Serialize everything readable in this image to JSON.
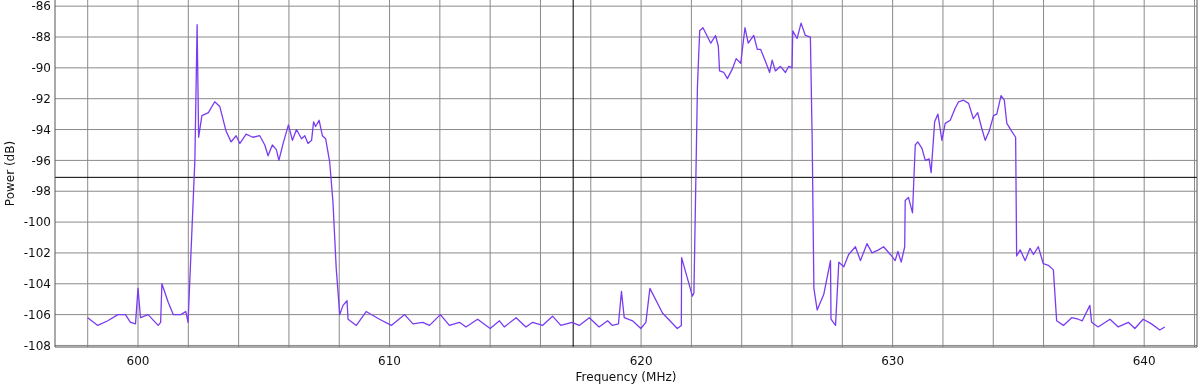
{
  "chart_data": {
    "type": "line",
    "xlabel": "Frequency (MHz)",
    "ylabel": "Power (dB)",
    "xlim": [
      596.7,
      642.1
    ],
    "ylim": [
      -108.1,
      -85.6
    ],
    "xticks": [
      {
        "value": 598,
        "label": null
      },
      600,
      {
        "value": 602,
        "label": null
      },
      {
        "value": 604,
        "label": null
      },
      {
        "value": 606,
        "label": null
      },
      {
        "value": 608,
        "label": null
      },
      610,
      {
        "value": 612,
        "label": null
      },
      {
        "value": 614,
        "label": null
      },
      {
        "value": 616,
        "label": null
      },
      {
        "value": 618,
        "label": null
      },
      620,
      {
        "value": 622,
        "label": null
      },
      {
        "value": 624,
        "label": null
      },
      {
        "value": 626,
        "label": null
      },
      {
        "value": 628,
        "label": null
      },
      630,
      {
        "value": 632,
        "label": null
      },
      {
        "value": 634,
        "label": null
      },
      {
        "value": 636,
        "label": null
      },
      {
        "value": 638,
        "label": null
      },
      640,
      {
        "value": 642,
        "label": null
      }
    ],
    "yticks": [
      -108,
      -106,
      -104,
      -102,
      -100,
      -98,
      -96,
      -94,
      -92,
      -90,
      -88,
      -86
    ],
    "grid": true,
    "marker": "none",
    "line_style": "solid",
    "ref_lines": [
      {
        "axis": "x",
        "value": 617.3,
        "color": "#000000"
      },
      {
        "axis": "y",
        "value": -97.1,
        "color": "#000000"
      }
    ],
    "series": [
      {
        "color": "#7a3cf0",
        "x": [
          598.0,
          598.4,
          598.8,
          599.2,
          599.5,
          599.7,
          599.9,
          600.0,
          600.1,
          600.4,
          600.8,
          600.9,
          600.95,
          601.2,
          601.4,
          601.7,
          601.9,
          601.99,
          602.26,
          602.35,
          602.41,
          602.54,
          602.8,
          603.05,
          603.25,
          603.5,
          603.7,
          603.9,
          604.05,
          604.3,
          604.56,
          604.84,
          605.04,
          605.17,
          605.34,
          605.5,
          605.6,
          605.77,
          605.98,
          606.14,
          606.3,
          606.5,
          606.63,
          606.76,
          606.9,
          606.98,
          607.06,
          607.2,
          607.33,
          607.46,
          607.62,
          607.75,
          607.88,
          608.02,
          608.15,
          608.31,
          608.35,
          608.68,
          609.07,
          609.6,
          610.07,
          610.6,
          610.93,
          611.32,
          611.59,
          612.02,
          612.38,
          612.78,
          613.04,
          613.5,
          614.0,
          614.37,
          614.56,
          615.03,
          615.42,
          615.69,
          616.08,
          616.48,
          616.81,
          617.25,
          617.54,
          617.94,
          618.33,
          618.67,
          618.86,
          619.1,
          619.22,
          619.33,
          619.66,
          619.99,
          620.19,
          620.35,
          620.85,
          621.44,
          621.6,
          621.61,
          622.04,
          622.1,
          622.24,
          622.33,
          622.46,
          622.77,
          622.96,
          623.07,
          623.12,
          623.29,
          623.43,
          623.62,
          623.78,
          623.96,
          624.13,
          624.26,
          624.48,
          624.62,
          624.75,
          624.95,
          625.11,
          625.21,
          625.34,
          625.54,
          625.74,
          625.87,
          626.0,
          626.03,
          626.2,
          626.36,
          626.53,
          626.73,
          626.8,
          626.87,
          627.0,
          627.26,
          627.53,
          627.55,
          627.73,
          627.86,
          628.06,
          628.25,
          628.52,
          628.72,
          628.98,
          629.18,
          629.44,
          629.64,
          629.91,
          630.1,
          630.21,
          630.34,
          630.48,
          630.5,
          630.63,
          630.79,
          630.9,
          631.0,
          631.16,
          631.3,
          631.45,
          631.53,
          631.67,
          631.8,
          631.96,
          632.09,
          632.29,
          632.49,
          632.62,
          632.82,
          633.02,
          633.21,
          633.38,
          633.54,
          633.68,
          633.84,
          634.01,
          634.14,
          634.31,
          634.44,
          634.54,
          634.73,
          634.89,
          634.93,
          635.07,
          635.27,
          635.46,
          635.6,
          635.79,
          635.99,
          636.19,
          636.39,
          636.52,
          636.79,
          637.12,
          637.38,
          637.54,
          637.84,
          637.91,
          638.17,
          638.64,
          638.97,
          639.37,
          639.63,
          639.96,
          640.29,
          640.62,
          640.82
        ],
        "values": [
          -106.2,
          -106.7,
          -106.4,
          -106.0,
          -106.0,
          -106.5,
          -106.6,
          -104.3,
          -106.2,
          -106.0,
          -106.7,
          -106.5,
          -104.0,
          -105.2,
          -106.0,
          -106.0,
          -105.8,
          -106.5,
          -96.0,
          -87.2,
          -94.5,
          -93.1,
          -92.9,
          -92.2,
          -92.5,
          -94.1,
          -94.8,
          -94.4,
          -94.9,
          -94.3,
          -94.5,
          -94.4,
          -95.0,
          -95.7,
          -95.0,
          -95.3,
          -96.0,
          -94.9,
          -93.7,
          -94.7,
          -94.0,
          -94.6,
          -94.4,
          -94.9,
          -94.7,
          -93.5,
          -93.8,
          -93.4,
          -94.4,
          -94.6,
          -96.1,
          -98.7,
          -103.0,
          -106.0,
          -105.4,
          -105.1,
          -106.3,
          -106.7,
          -105.8,
          -106.3,
          -106.7,
          -106.0,
          -106.6,
          -106.5,
          -106.7,
          -106.0,
          -106.7,
          -106.5,
          -106.8,
          -106.3,
          -106.9,
          -106.4,
          -106.8,
          -106.2,
          -106.8,
          -106.5,
          -106.7,
          -106.1,
          -106.7,
          -106.5,
          -106.7,
          -106.2,
          -106.8,
          -106.4,
          -106.7,
          -106.6,
          -104.5,
          -106.2,
          -106.4,
          -106.9,
          -106.5,
          -104.3,
          -105.9,
          -106.9,
          -106.7,
          -102.3,
          -104.8,
          -104.6,
          -91.2,
          -87.6,
          -87.4,
          -88.4,
          -87.9,
          -88.6,
          -90.2,
          -90.3,
          -90.7,
          -90.1,
          -89.4,
          -89.7,
          -87.4,
          -88.4,
          -87.9,
          -88.8,
          -88.8,
          -89.6,
          -90.3,
          -89.5,
          -90.2,
          -89.9,
          -90.3,
          -89.9,
          -90.0,
          -87.6,
          -88.1,
          -87.1,
          -87.9,
          -88.0,
          -94.5,
          -104.3,
          -105.7,
          -104.7,
          -102.5,
          -106.3,
          -106.7,
          -102.6,
          -102.9,
          -102.1,
          -101.6,
          -102.5,
          -101.4,
          -102.0,
          -101.8,
          -101.6,
          -102.1,
          -102.5,
          -101.9,
          -102.6,
          -101.6,
          -98.6,
          -98.4,
          -99.4,
          -95.0,
          -94.8,
          -95.2,
          -96.0,
          -95.9,
          -96.8,
          -93.5,
          -93.0,
          -94.7,
          -93.6,
          -93.4,
          -92.6,
          -92.2,
          -92.1,
          -92.3,
          -93.3,
          -92.9,
          -93.9,
          -94.7,
          -94.1,
          -93.1,
          -93.0,
          -91.8,
          -92.1,
          -93.6,
          -94.1,
          -94.5,
          -102.2,
          -101.8,
          -102.5,
          -101.7,
          -102.1,
          -101.6,
          -102.7,
          -102.8,
          -103.1,
          -106.4,
          -106.7,
          -106.2,
          -106.3,
          -106.4,
          -105.4,
          -106.5,
          -106.8,
          -106.3,
          -106.8,
          -106.5,
          -106.9,
          -106.3,
          -106.6,
          -107.0,
          -106.8
        ]
      }
    ]
  }
}
